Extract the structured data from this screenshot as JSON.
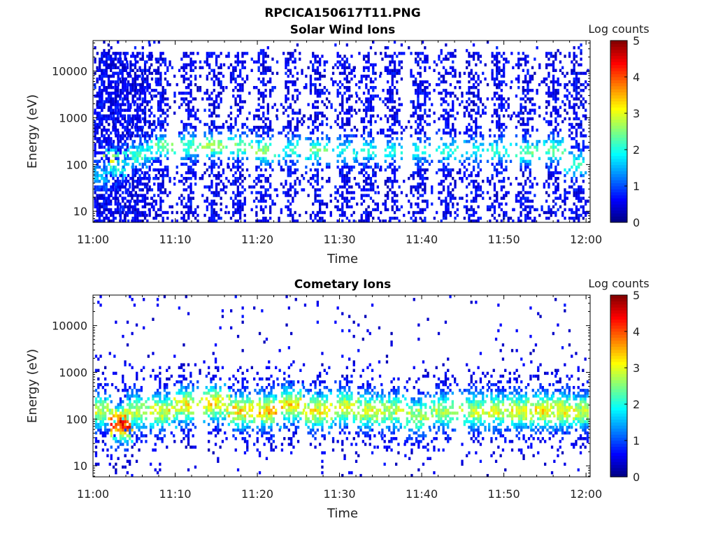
{
  "figure_title": "RPCICA150617T11.PNG",
  "colormap": [
    "#00007f",
    "#0000ff",
    "#007fff",
    "#00ffff",
    "#7fff7f",
    "#ffff00",
    "#ff7f00",
    "#ff0000",
    "#7f0000"
  ],
  "chart_data": [
    {
      "type": "heatmap",
      "title": "Solar Wind Ions",
      "xlabel": "Time",
      "ylabel": "Energy (eV)",
      "x_ticks": [
        "11:00",
        "11:10",
        "11:20",
        "11:30",
        "11:40",
        "11:50",
        "12:00"
      ],
      "x_range_minutes": [
        0,
        60.5
      ],
      "y_scale": "log",
      "y_ticks": [
        "10",
        "100",
        "1000",
        "10000"
      ],
      "y_tick_values": [
        10,
        100,
        1000,
        10000
      ],
      "y_range": [
        5.8,
        45000
      ],
      "colorbar": {
        "label": "Log counts",
        "ticks": [
          "0",
          "1",
          "2",
          "3",
          "4",
          "5"
        ],
        "range": [
          0,
          5
        ]
      },
      "sweep_minutes": [
        0.4,
        1.5,
        2.6,
        3.5,
        5.0,
        6.2,
        8.1,
        11.5,
        14.6,
        17.5,
        20.6,
        23.9,
        27.2,
        30.5,
        33.4,
        36.3,
        39.7,
        43.1,
        46.2,
        49.3,
        52.5,
        55.9,
        58.7
      ],
      "peak_energy_eV": [
        60,
        60,
        120,
        80,
        150,
        180,
        250,
        250,
        250,
        250,
        200,
        220,
        200,
        200,
        200,
        200,
        200,
        200,
        200,
        200,
        180,
        200,
        100
      ],
      "peak_log_counts": [
        1.2,
        1.1,
        2.7,
        1.5,
        1.8,
        1.6,
        2.0,
        1.9,
        2.3,
        2.1,
        2.2,
        1.7,
        2.0,
        1.6,
        1.5,
        1.5,
        1.5,
        1.6,
        1.6,
        1.7,
        2.1,
        2.0,
        1.8
      ]
    },
    {
      "type": "heatmap",
      "title": "Cometary Ions",
      "xlabel": "Time",
      "ylabel": "Energy (eV)",
      "x_ticks": [
        "11:00",
        "11:10",
        "11:20",
        "11:30",
        "11:40",
        "11:50",
        "12:00"
      ],
      "x_range_minutes": [
        0,
        60.5
      ],
      "y_scale": "log",
      "y_ticks": [
        "10",
        "100",
        "1000",
        "10000"
      ],
      "y_tick_values": [
        10,
        100,
        1000,
        10000
      ],
      "y_range": [
        5.8,
        45000
      ],
      "colorbar": {
        "label": "Log counts",
        "ticks": [
          "0",
          "1",
          "2",
          "3",
          "4",
          "5"
        ],
        "range": [
          0,
          5
        ]
      },
      "sweep_minutes": [
        0.8,
        3.5,
        5.2,
        8.3,
        11.2,
        14.8,
        17.8,
        21.0,
        24.0,
        27.2,
        30.5,
        33.3,
        36.2,
        39.5,
        42.5,
        46.2,
        49.2,
        52.0,
        54.6,
        57.0,
        59.5
      ],
      "peak_energy_eV": [
        150,
        80,
        150,
        150,
        200,
        220,
        150,
        150,
        200,
        150,
        180,
        150,
        150,
        120,
        150,
        150,
        150,
        150,
        150,
        150,
        150
      ],
      "peak_log_counts": [
        2.6,
        4.2,
        2.6,
        2.8,
        2.9,
        3.1,
        3.0,
        3.2,
        3.0,
        3.0,
        2.8,
        2.7,
        2.6,
        2.5,
        2.5,
        2.6,
        2.7,
        2.9,
        3.0,
        2.8,
        2.7
      ]
    }
  ]
}
